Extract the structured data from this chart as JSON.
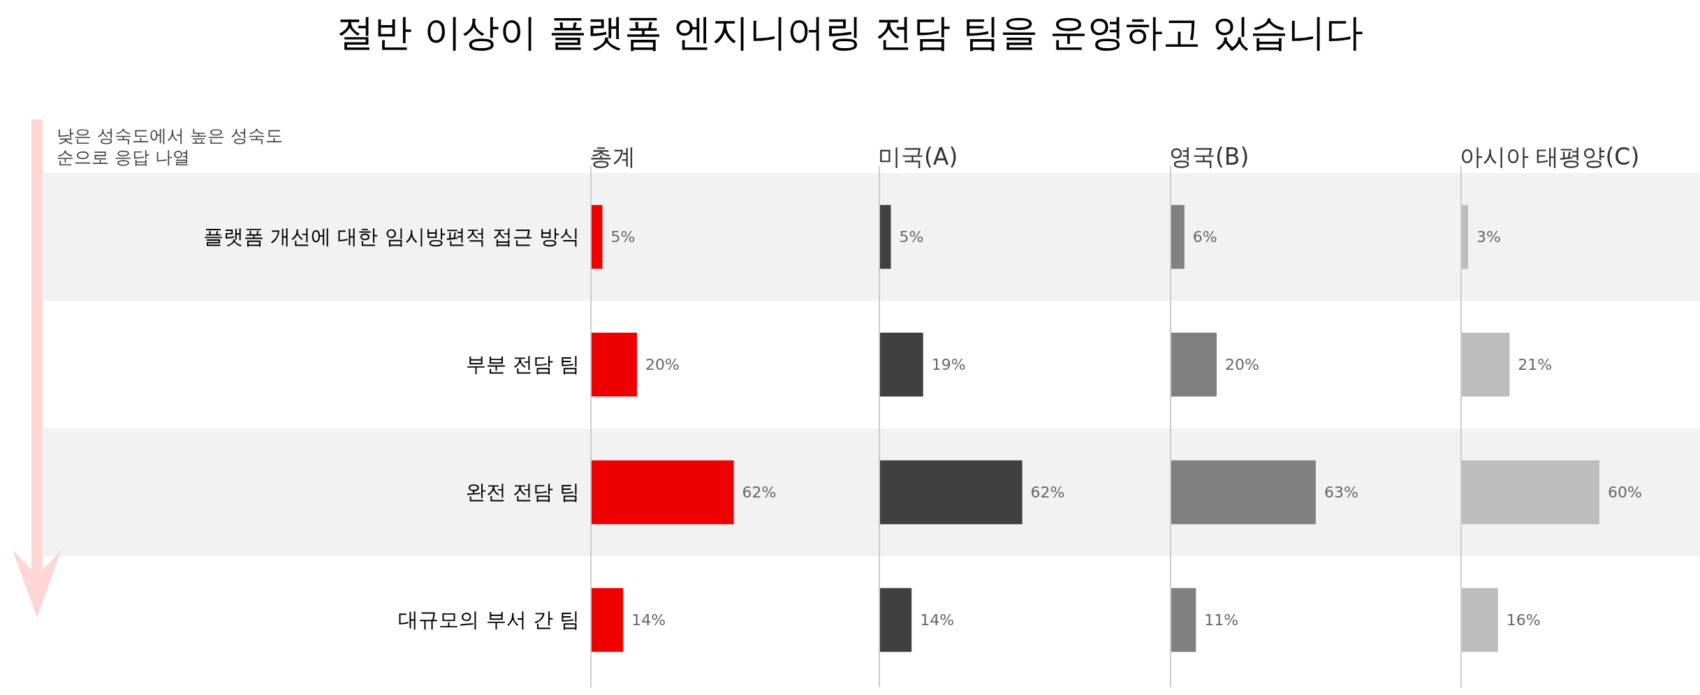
{
  "chart_data": [
    {
      "type": "bar",
      "orientation": "horizontal",
      "title": "절반 이상이 플랫폼 엔지니어링 전담 팀을 운영하고 있습니다",
      "subtitle": "총계",
      "annotations": [
        "낮은 성숙도에서 높은 성숙도 순으로 응답 나열"
      ],
      "categories": [
        "플랫폼 개선에 대한 임시방편적 접근 방식",
        "부분 전담 팀",
        "완전 전담 팀",
        "대규모의 부서 간 팀"
      ],
      "values": [
        5,
        20,
        62,
        14
      ],
      "value_labels": [
        "5%",
        "20%",
        "62%",
        "14%"
      ],
      "color": "#ee0000",
      "tick_labels": "y"
    },
    {
      "type": "bar",
      "orientation": "horizontal",
      "subtitle": "미국(A)",
      "values": [
        5,
        19,
        62,
        14
      ],
      "value_labels": [
        "5%",
        "19%",
        "62%",
        "14%"
      ],
      "color": "#404040",
      "tick_labels": false
    },
    {
      "type": "bar",
      "orientation": "horizontal",
      "subtitle": "영국(B)",
      "values": [
        6,
        20,
        63,
        11
      ],
      "value_labels": [
        "6%",
        "20%",
        "63%",
        "11%"
      ],
      "color": "#808080",
      "tick_labels": false
    },
    {
      "type": "bar",
      "orientation": "horizontal",
      "subtitle": "아시아 태평양(C)",
      "values": [
        3,
        21,
        60,
        16
      ],
      "value_labels": [
        "3%",
        "21%",
        "60%",
        "16%"
      ],
      "color": "#bdbdbd",
      "tick_labels": false
    }
  ]
}
